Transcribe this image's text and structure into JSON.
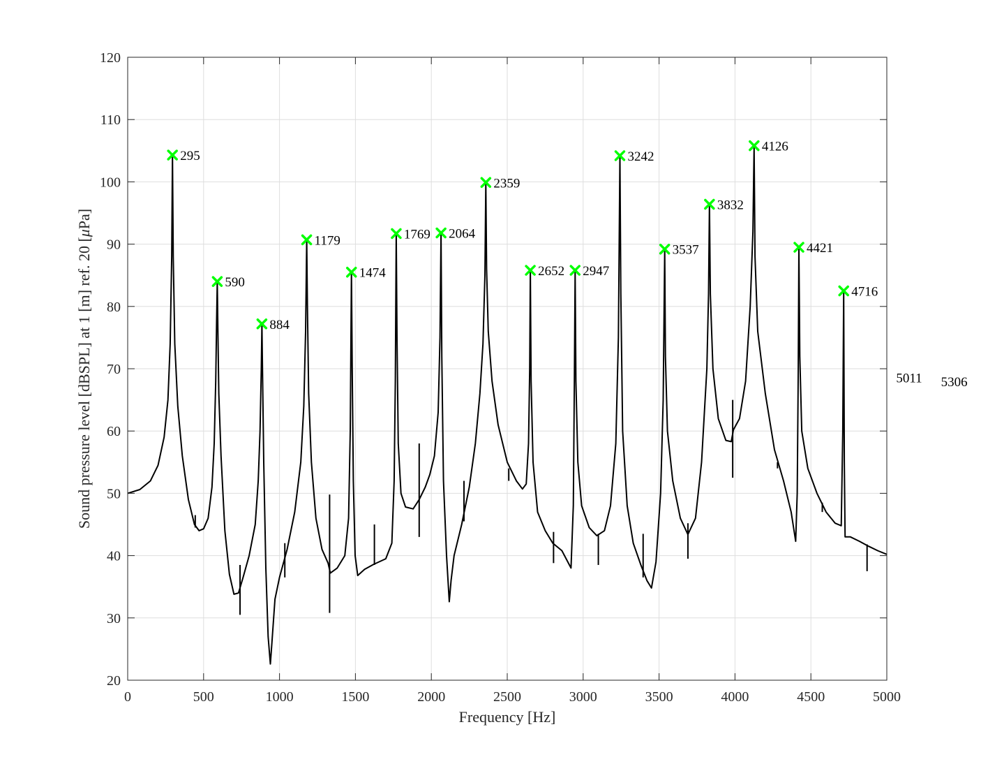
{
  "chart_data": {
    "type": "line",
    "title": "",
    "xlabel": "Frequency [Hz]",
    "ylabel_parts": [
      "Sound pressure level [dBSPL] at 1 [m] ref. 20 [",
      "μ",
      "Pa]"
    ],
    "xlim": [
      0,
      5000
    ],
    "ylim": [
      20,
      120
    ],
    "xticks": [
      0,
      500,
      1000,
      1500,
      2000,
      2500,
      3000,
      3500,
      4000,
      4500,
      5000
    ],
    "yticks": [
      20,
      30,
      40,
      50,
      60,
      70,
      80,
      90,
      100,
      110,
      120
    ],
    "grid": true,
    "colors": {
      "line": "#000000",
      "marker": "#00ff00",
      "grid": "#dedede",
      "axis": "#262626"
    },
    "series": [
      {
        "points": [
          [
            0,
            50
          ],
          [
            80,
            50.6
          ],
          [
            150,
            52
          ],
          [
            200,
            54.5
          ],
          [
            240,
            59
          ],
          [
            265,
            65
          ],
          [
            280,
            74
          ],
          [
            290,
            88
          ],
          [
            295,
            104.3
          ],
          [
            300,
            88
          ],
          [
            310,
            74
          ],
          [
            330,
            64
          ],
          [
            360,
            56
          ],
          [
            400,
            49
          ],
          [
            440,
            45
          ],
          [
            470,
            44
          ],
          [
            500,
            44.3
          ],
          [
            530,
            46
          ],
          [
            555,
            51
          ],
          [
            570,
            58
          ],
          [
            580,
            68
          ],
          [
            586,
            78
          ],
          [
            590,
            84
          ],
          [
            594,
            76
          ],
          [
            600,
            66
          ],
          [
            615,
            56
          ],
          [
            640,
            44
          ],
          [
            670,
            37
          ],
          [
            700,
            33.8
          ],
          [
            730,
            34
          ],
          [
            760,
            36.5
          ],
          [
            800,
            40
          ],
          [
            840,
            45
          ],
          [
            860,
            52
          ],
          [
            872,
            60
          ],
          [
            880,
            70
          ],
          [
            884,
            77.2
          ],
          [
            888,
            70
          ],
          [
            896,
            55
          ],
          [
            910,
            38
          ],
          [
            925,
            27
          ],
          [
            940,
            22.6
          ],
          [
            950,
            26
          ],
          [
            970,
            33
          ],
          [
            1000,
            36.5
          ],
          [
            1050,
            41
          ],
          [
            1100,
            47
          ],
          [
            1140,
            55
          ],
          [
            1160,
            64
          ],
          [
            1172,
            76
          ],
          [
            1179,
            90.7
          ],
          [
            1184,
            80
          ],
          [
            1192,
            66
          ],
          [
            1210,
            55
          ],
          [
            1240,
            46
          ],
          [
            1280,
            41
          ],
          [
            1320,
            38.8
          ],
          [
            1335,
            37.2
          ],
          [
            1380,
            38
          ],
          [
            1430,
            40
          ],
          [
            1455,
            46
          ],
          [
            1466,
            60
          ],
          [
            1474,
            85.5
          ],
          [
            1479,
            70
          ],
          [
            1486,
            52
          ],
          [
            1498,
            40
          ],
          [
            1515,
            36.8
          ],
          [
            1560,
            37.8
          ],
          [
            1620,
            38.6
          ],
          [
            1700,
            39.5
          ],
          [
            1740,
            42
          ],
          [
            1755,
            52
          ],
          [
            1763,
            68
          ],
          [
            1769,
            91.7
          ],
          [
            1774,
            75
          ],
          [
            1782,
            58
          ],
          [
            1800,
            50
          ],
          [
            1830,
            47.8
          ],
          [
            1880,
            47.5
          ],
          [
            1920,
            49
          ],
          [
            1960,
            51
          ],
          [
            1990,
            53
          ],
          [
            2020,
            56
          ],
          [
            2045,
            63
          ],
          [
            2057,
            75
          ],
          [
            2064,
            91.8
          ],
          [
            2069,
            72
          ],
          [
            2080,
            52
          ],
          [
            2100,
            40
          ],
          [
            2118,
            32.6
          ],
          [
            2130,
            36
          ],
          [
            2150,
            40
          ],
          [
            2200,
            45
          ],
          [
            2250,
            51
          ],
          [
            2290,
            58
          ],
          [
            2320,
            66
          ],
          [
            2340,
            74
          ],
          [
            2353,
            85
          ],
          [
            2359,
            99.9
          ],
          [
            2364,
            86
          ],
          [
            2375,
            76
          ],
          [
            2400,
            68
          ],
          [
            2440,
            61
          ],
          [
            2500,
            55
          ],
          [
            2560,
            52
          ],
          [
            2600,
            50.7
          ],
          [
            2625,
            51.5
          ],
          [
            2640,
            58
          ],
          [
            2648,
            70
          ],
          [
            2652,
            85.8
          ],
          [
            2657,
            68
          ],
          [
            2670,
            55
          ],
          [
            2700,
            47
          ],
          [
            2750,
            44
          ],
          [
            2800,
            42
          ],
          [
            2860,
            40.8
          ],
          [
            2920,
            38
          ],
          [
            2935,
            48
          ],
          [
            2942,
            68
          ],
          [
            2947,
            85.8
          ],
          [
            2952,
            68
          ],
          [
            2965,
            55
          ],
          [
            2990,
            48
          ],
          [
            3040,
            44.5
          ],
          [
            3090,
            43.2
          ],
          [
            3140,
            44
          ],
          [
            3180,
            48
          ],
          [
            3215,
            58
          ],
          [
            3232,
            75
          ],
          [
            3242,
            104.2
          ],
          [
            3248,
            82
          ],
          [
            3260,
            60
          ],
          [
            3290,
            48
          ],
          [
            3330,
            42
          ],
          [
            3380,
            38.5
          ],
          [
            3420,
            36
          ],
          [
            3450,
            34.8
          ],
          [
            3480,
            39
          ],
          [
            3510,
            50
          ],
          [
            3527,
            65
          ],
          [
            3537,
            89.2
          ],
          [
            3542,
            72
          ],
          [
            3555,
            60
          ],
          [
            3590,
            52
          ],
          [
            3640,
            46
          ],
          [
            3690,
            43.4
          ],
          [
            3740,
            46
          ],
          [
            3780,
            55
          ],
          [
            3815,
            70
          ],
          [
            3826,
            82
          ],
          [
            3832,
            96.4
          ],
          [
            3838,
            82
          ],
          [
            3855,
            70
          ],
          [
            3890,
            62
          ],
          [
            3940,
            58.5
          ],
          [
            3975,
            58.3
          ],
          [
            3990,
            60.2
          ],
          [
            4030,
            62
          ],
          [
            4070,
            68
          ],
          [
            4100,
            80
          ],
          [
            4118,
            92
          ],
          [
            4126,
            105.8
          ],
          [
            4132,
            88
          ],
          [
            4150,
            76
          ],
          [
            4200,
            66
          ],
          [
            4260,
            57
          ],
          [
            4320,
            52
          ],
          [
            4370,
            47
          ],
          [
            4400,
            42.3
          ],
          [
            4410,
            50
          ],
          [
            4417,
            70
          ],
          [
            4421,
            89.5
          ],
          [
            4427,
            72
          ],
          [
            4440,
            60
          ],
          [
            4480,
            54
          ],
          [
            4540,
            50
          ],
          [
            4600,
            47
          ],
          [
            4660,
            45.2
          ],
          [
            4700,
            44.8
          ],
          [
            4710,
            60
          ],
          [
            4716,
            82.5
          ],
          [
            4720,
            55
          ],
          [
            4725,
            43
          ],
          [
            4760,
            43
          ],
          [
            4820,
            42.3
          ],
          [
            4880,
            41.5
          ],
          [
            4940,
            40.8
          ],
          [
            5000,
            40.2
          ]
        ],
        "spikes": [
          [
            445,
            44.5,
            46.5
          ],
          [
            740,
            30.5,
            38.5
          ],
          [
            1035,
            36.5,
            42
          ],
          [
            1330,
            30.8,
            49.8
          ],
          [
            1625,
            38.5,
            45
          ],
          [
            1920,
            43,
            58
          ],
          [
            2215,
            45.5,
            52
          ],
          [
            2510,
            52,
            54
          ],
          [
            2805,
            38.8,
            43.8
          ],
          [
            3100,
            38.5,
            43.5
          ],
          [
            3395,
            36.5,
            43.5
          ],
          [
            3690,
            39.5,
            45.2
          ],
          [
            3985,
            52.5,
            65
          ],
          [
            4280,
            54,
            55
          ],
          [
            4575,
            47,
            48.5
          ],
          [
            4870,
            37.5,
            41.8
          ]
        ]
      }
    ],
    "peaks": [
      {
        "x": 295,
        "y": 104.3,
        "label": "295"
      },
      {
        "x": 590,
        "y": 84.0,
        "label": "590"
      },
      {
        "x": 884,
        "y": 77.2,
        "label": "884"
      },
      {
        "x": 1179,
        "y": 90.7,
        "label": "1179"
      },
      {
        "x": 1474,
        "y": 85.5,
        "label": "1474"
      },
      {
        "x": 1769,
        "y": 91.7,
        "label": "1769"
      },
      {
        "x": 2064,
        "y": 91.8,
        "label": "2064"
      },
      {
        "x": 2359,
        "y": 99.9,
        "label": "2359"
      },
      {
        "x": 2652,
        "y": 85.8,
        "label": "2652"
      },
      {
        "x": 2947,
        "y": 85.8,
        "label": "2947"
      },
      {
        "x": 3242,
        "y": 104.2,
        "label": "3242"
      },
      {
        "x": 3537,
        "y": 89.2,
        "label": "3537"
      },
      {
        "x": 3832,
        "y": 96.4,
        "label": "3832"
      },
      {
        "x": 4126,
        "y": 105.8,
        "label": "4126"
      },
      {
        "x": 4421,
        "y": 89.5,
        "label": "4421"
      },
      {
        "x": 4716,
        "y": 82.5,
        "label": "4716"
      }
    ],
    "outside_labels": [
      {
        "x": 5011,
        "y": 68.6,
        "label": "5011"
      },
      {
        "x": 5306,
        "y": 68.0,
        "label": "5306"
      }
    ]
  }
}
